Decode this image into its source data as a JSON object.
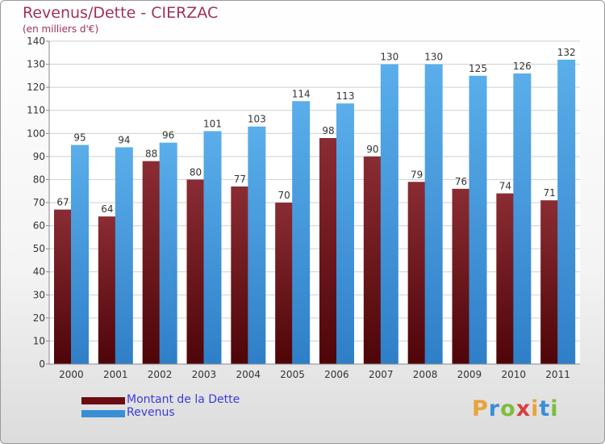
{
  "title": "Revenus/Dette - CIERZAC",
  "subtitle": "(en milliers d'€)",
  "logo": {
    "letters": [
      "P",
      "r",
      "o",
      "x",
      "i",
      "t",
      "i"
    ],
    "colors": [
      "#e8a33a",
      "#3b8ed8",
      "#7bbd3c",
      "#d63f3f",
      "#e8a33a",
      "#3b8ed8",
      "#7bbd3c"
    ]
  },
  "legend": {
    "items": [
      {
        "label": "Montant de la Dette",
        "color": "#6b0d12"
      },
      {
        "label": "Revenus",
        "color": "#3a8ed6"
      }
    ]
  },
  "chart_data": {
    "type": "bar",
    "categories": [
      "2000",
      "2001",
      "2002",
      "2003",
      "2004",
      "2005",
      "2006",
      "2007",
      "2008",
      "2009",
      "2010",
      "2011"
    ],
    "series": [
      {
        "name": "Montant de la Dette",
        "color": "#7a2228",
        "values": [
          67,
          64,
          88,
          80,
          77,
          70,
          98,
          90,
          79,
          76,
          74,
          71
        ]
      },
      {
        "name": "Revenus",
        "color": "#4a9fe0",
        "values": [
          95,
          94,
          96,
          101,
          103,
          114,
          113,
          130,
          130,
          125,
          126,
          132
        ]
      }
    ],
    "ylim": [
      0,
      140
    ],
    "ytick_step": 10,
    "grid": true,
    "data_labels": true,
    "legend": "bottom-left"
  }
}
